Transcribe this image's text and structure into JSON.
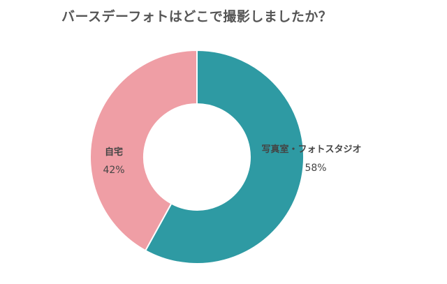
{
  "chart_data": {
    "type": "pie",
    "title": "バースデーフォトはどこで撮影しましたか？",
    "donut": true,
    "slices": [
      {
        "label": "写真室・フォトスタジオ",
        "value": 58,
        "display": "58%",
        "color": "#2e9aa3"
      },
      {
        "label": "自宅",
        "value": 42,
        "display": "42%",
        "color": "#ef9ea5"
      }
    ],
    "legend": "none"
  }
}
